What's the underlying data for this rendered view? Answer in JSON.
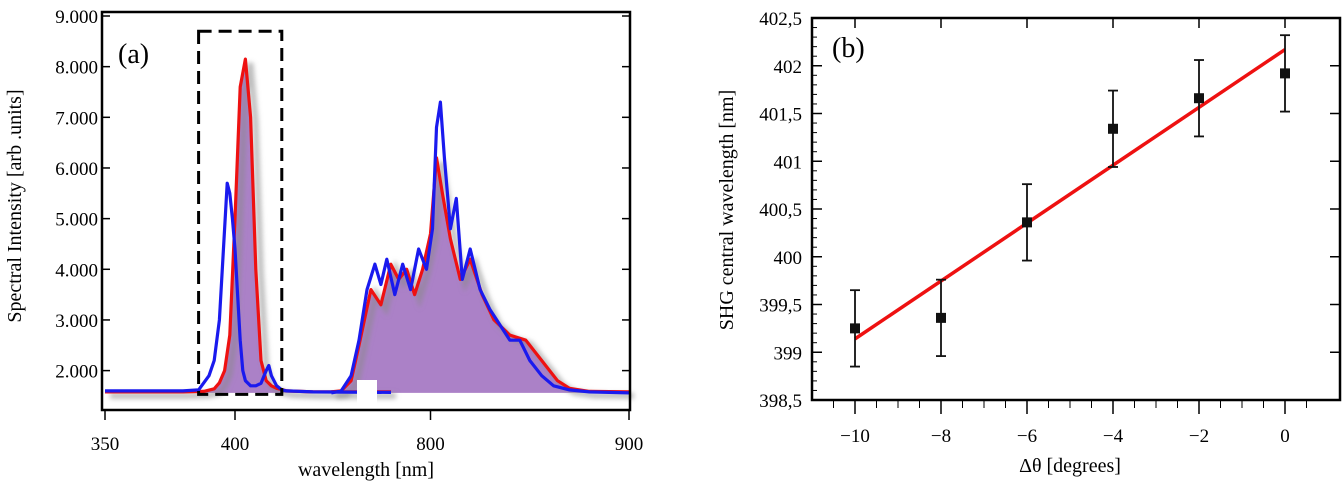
{
  "chart_data": [
    {
      "panel_label": "(a)",
      "type": "line",
      "xlabel": "wavelength [nm]",
      "ylabel": "Spectral Intensity [arb .units]",
      "x_axis_note": "broken axis: 350-460 nm, then 750-900 nm",
      "x_segments": [
        {
          "range": [
            350,
            460
          ],
          "ticks": [
            "350",
            "400"
          ]
        },
        {
          "range": [
            700,
            900
          ],
          "ticks": [
            "800",
            "900"
          ]
        }
      ],
      "ylim": [
        1400,
        9000
      ],
      "y_ticks": [
        "2.000",
        "3.000",
        "4.000",
        "5.000",
        "6.000",
        "7.000",
        "8.000",
        "9.000"
      ],
      "grid": false,
      "colors": {
        "red": "#ee1111",
        "blue": "#1a1aee",
        "fill": "#a77ac4"
      },
      "dashed_box": {
        "x_range": [
          386,
          418
        ],
        "y_range": [
          1530,
          8700
        ]
      },
      "series": [
        {
          "color": "red",
          "x": [
            350,
            380,
            388,
            392,
            394,
            396,
            398,
            400,
            402,
            404,
            406,
            408,
            410,
            412,
            414,
            416,
            420,
            430,
            460,
            750,
            755,
            760,
            764,
            770,
            775,
            780,
            784,
            788,
            792,
            796,
            800,
            803,
            806,
            810,
            815,
            820,
            826,
            832,
            840,
            848,
            856,
            864,
            870,
            880,
            900
          ],
          "y": [
            1580,
            1580,
            1590,
            1640,
            1760,
            2000,
            2700,
            5000,
            7600,
            8150,
            7000,
            4000,
            2200,
            1800,
            1700,
            1650,
            1600,
            1580,
            1580,
            1580,
            1600,
            1800,
            2500,
            3600,
            3300,
            4100,
            3800,
            4000,
            3500,
            4000,
            4700,
            6200,
            5500,
            4600,
            3800,
            4200,
            3500,
            3000,
            2700,
            2600,
            2200,
            1800,
            1650,
            1590,
            1580
          ]
        },
        {
          "color": "blue",
          "x": [
            350,
            380,
            386,
            390,
            392,
            394,
            396,
            397,
            398,
            399,
            400,
            401,
            402,
            403,
            404,
            406,
            408,
            410,
            412,
            413,
            414,
            416,
            418,
            420,
            430,
            460,
            750,
            755,
            760,
            764,
            768,
            772,
            775,
            778,
            782,
            786,
            790,
            794,
            798,
            801,
            803,
            805,
            807,
            810,
            813,
            816,
            820,
            825,
            830,
            835,
            840,
            845,
            850,
            856,
            862,
            870,
            880,
            900
          ],
          "y": [
            1600,
            1600,
            1620,
            1900,
            2200,
            3000,
            4800,
            5700,
            5500,
            5000,
            4400,
            3500,
            2600,
            2000,
            1800,
            1700,
            1700,
            1750,
            2000,
            2100,
            1900,
            1700,
            1620,
            1600,
            1580,
            1570,
            1560,
            1600,
            1900,
            2600,
            3600,
            4100,
            3700,
            4200,
            3500,
            4100,
            3600,
            4400,
            4000,
            4800,
            6800,
            7300,
            6200,
            4800,
            5400,
            3800,
            4400,
            3600,
            3200,
            2900,
            2600,
            2600,
            2200,
            1900,
            1700,
            1620,
            1580,
            1560
          ]
        }
      ]
    },
    {
      "panel_label": "(b)",
      "type": "scatter",
      "xlabel": "Δθ [degrees]",
      "ylabel": "SHG central wavelength [nm]",
      "xlim": [
        -11,
        0.6
      ],
      "ylim": [
        398.5,
        402.5
      ],
      "x_ticks": [
        "−10",
        "−8",
        "−6",
        "−4",
        "−2",
        "0"
      ],
      "y_ticks": [
        "398,5",
        "399",
        "399,5",
        "400",
        "400,5",
        "401",
        "401,5",
        "402",
        "402,5"
      ],
      "grid": false,
      "points": {
        "x": [
          -10,
          -8,
          -6,
          -4,
          -2,
          0
        ],
        "y": [
          399.25,
          399.36,
          400.36,
          401.34,
          401.66,
          401.92
        ],
        "error": [
          0.4,
          0.4,
          0.4,
          0.4,
          0.4,
          0.4
        ],
        "color": "#111111"
      },
      "fit_line": {
        "x": [
          -10,
          0
        ],
        "y": [
          399.14,
          402.17
        ],
        "color": "#ee1111"
      }
    }
  ]
}
